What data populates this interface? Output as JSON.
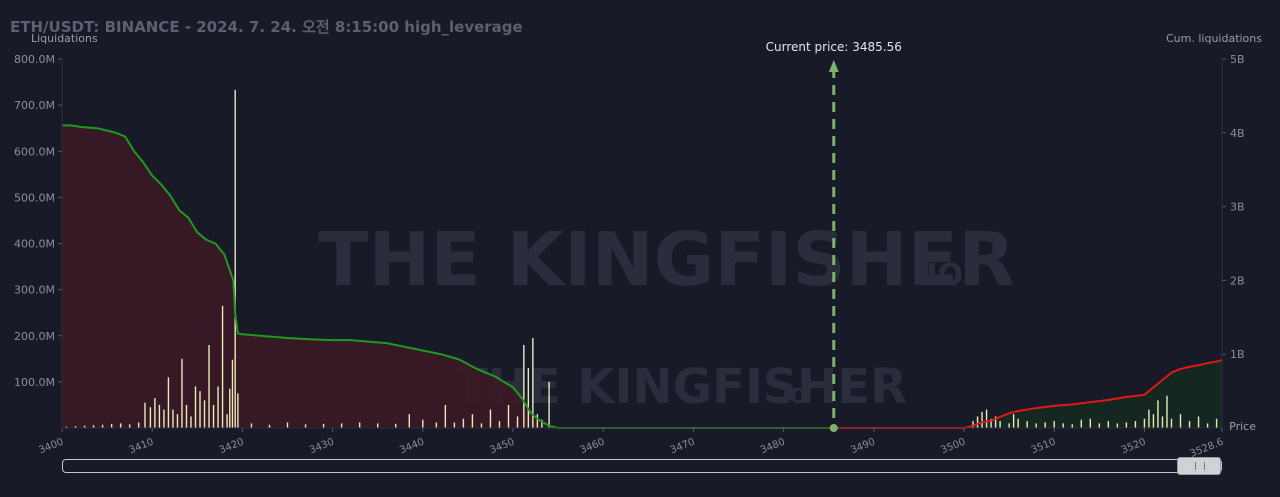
{
  "title": "ETH/USDT: BINANCE - 2024. 7. 24. 오전 8:15:00 high_leverage",
  "watermark": {
    "text": "THE KINGFISHER",
    "suffix": ".IO"
  },
  "current_price_label": "Current price: 3485.56",
  "scrollbar": {
    "position": "end"
  },
  "chart_data": {
    "type": "bar",
    "title": "ETH/USDT: BINANCE - 2024. 7. 24. 오전 8:15:00 high_leverage",
    "xlabel": "Price",
    "ylabel": "Liquidations",
    "y2label": "Cum. liquidations",
    "xlim": [
      3400,
      3528.6
    ],
    "ylim": [
      0,
      800000000
    ],
    "y2lim": [
      0,
      5000000000
    ],
    "x_ticks": [
      "3400",
      "3410",
      "3420",
      "3430",
      "3440",
      "3450",
      "3460",
      "3470",
      "3480",
      "3490",
      "3500",
      "3510",
      "3520",
      "3528.6"
    ],
    "y_ticks": [
      "800.0M",
      "700.0M",
      "600.0M",
      "500.0M",
      "400.0M",
      "300.0M",
      "200.0M",
      "100.0M"
    ],
    "y2_ticks": [
      "5B",
      "4B",
      "3B",
      "2B",
      "1B"
    ],
    "current_price": 3485.56,
    "colors": {
      "bars": "#e9eab9",
      "short_cum": "#1f9a1f",
      "long_cum": "#e01818",
      "short_fill": "#3a1a24",
      "long_fill": "#15291f",
      "price_line": "#7fb26a"
    },
    "bars": [
      [
        3400.5,
        3
      ],
      [
        3401.5,
        4
      ],
      [
        3402.5,
        5
      ],
      [
        3403.5,
        6
      ],
      [
        3404.5,
        7
      ],
      [
        3405.5,
        9
      ],
      [
        3406.5,
        10
      ],
      [
        3407.5,
        8
      ],
      [
        3408.5,
        12
      ],
      [
        3409.2,
        55
      ],
      [
        3409.8,
        45
      ],
      [
        3410.3,
        65
      ],
      [
        3410.8,
        50
      ],
      [
        3411.3,
        40
      ],
      [
        3411.8,
        110
      ],
      [
        3412.3,
        40
      ],
      [
        3412.8,
        30
      ],
      [
        3413.3,
        150
      ],
      [
        3413.8,
        50
      ],
      [
        3414.3,
        25
      ],
      [
        3414.8,
        90
      ],
      [
        3415.3,
        80
      ],
      [
        3415.8,
        60
      ],
      [
        3416.3,
        180
      ],
      [
        3416.8,
        50
      ],
      [
        3417.3,
        90
      ],
      [
        3417.8,
        265
      ],
      [
        3418.3,
        30
      ],
      [
        3418.6,
        85
      ],
      [
        3418.9,
        148
      ],
      [
        3419.2,
        733
      ],
      [
        3419.5,
        75
      ],
      [
        3421,
        10
      ],
      [
        3423,
        7
      ],
      [
        3425,
        12
      ],
      [
        3427,
        8
      ],
      [
        3429,
        9
      ],
      [
        3431,
        10
      ],
      [
        3433,
        12
      ],
      [
        3435,
        10
      ],
      [
        3437,
        9
      ],
      [
        3438.5,
        30
      ],
      [
        3440,
        18
      ],
      [
        3441.5,
        12
      ],
      [
        3442.5,
        50
      ],
      [
        3443.5,
        12
      ],
      [
        3444.5,
        20
      ],
      [
        3445.5,
        30
      ],
      [
        3446.5,
        10
      ],
      [
        3447.5,
        40
      ],
      [
        3448.5,
        15
      ],
      [
        3449.5,
        50
      ],
      [
        3450.5,
        25
      ],
      [
        3451.2,
        180
      ],
      [
        3451.7,
        130
      ],
      [
        3452.2,
        195
      ],
      [
        3452.7,
        30
      ],
      [
        3453.2,
        18
      ],
      [
        3454,
        100
      ],
      [
        3501,
        15
      ],
      [
        3501.5,
        25
      ],
      [
        3502,
        35
      ],
      [
        3502.5,
        40
      ],
      [
        3503,
        20
      ],
      [
        3503.5,
        25
      ],
      [
        3504,
        15
      ],
      [
        3505,
        10
      ],
      [
        3505.5,
        30
      ],
      [
        3506,
        20
      ],
      [
        3507,
        15
      ],
      [
        3508,
        10
      ],
      [
        3509,
        12
      ],
      [
        3510,
        15
      ],
      [
        3511,
        10
      ],
      [
        3512,
        8
      ],
      [
        3513,
        18
      ],
      [
        3514,
        20
      ],
      [
        3515,
        10
      ],
      [
        3516,
        15
      ],
      [
        3517,
        10
      ],
      [
        3518,
        12
      ],
      [
        3519,
        15
      ],
      [
        3520,
        20
      ],
      [
        3520.5,
        40
      ],
      [
        3521,
        30
      ],
      [
        3521.5,
        60
      ],
      [
        3522,
        25
      ],
      [
        3522.5,
        70
      ],
      [
        3523,
        20
      ],
      [
        3524,
        30
      ],
      [
        3525,
        15
      ],
      [
        3526,
        25
      ],
      [
        3527,
        10
      ],
      [
        3528,
        20
      ]
    ],
    "short_cum": [
      [
        3400,
        4100000000.0
      ],
      [
        3401,
        4100000000.0
      ],
      [
        3402,
        4080000000.0
      ],
      [
        3404,
        4060000000.0
      ],
      [
        3406,
        4000000000.0
      ],
      [
        3407,
        3950000000.0
      ],
      [
        3408,
        3750000000.0
      ],
      [
        3409,
        3600000000.0
      ],
      [
        3410,
        3420000000.0
      ],
      [
        3411,
        3300000000.0
      ],
      [
        3412,
        3150000000.0
      ],
      [
        3413,
        2950000000.0
      ],
      [
        3414,
        2850000000.0
      ],
      [
        3415,
        2650000000.0
      ],
      [
        3416,
        2550000000.0
      ],
      [
        3417,
        2500000000.0
      ],
      [
        3418,
        2350000000.0
      ],
      [
        3419,
        2000000000.0
      ],
      [
        3419.2,
        1550000000.0
      ],
      [
        3419.5,
        1280000000.0
      ],
      [
        3420,
        1270000000.0
      ],
      [
        3422,
        1250000000.0
      ],
      [
        3425,
        1220000000.0
      ],
      [
        3428,
        1200000000.0
      ],
      [
        3430,
        1190000000.0
      ],
      [
        3432,
        1190000000.0
      ],
      [
        3434,
        1170000000.0
      ],
      [
        3436,
        1150000000.0
      ],
      [
        3438,
        1100000000.0
      ],
      [
        3440,
        1050000000.0
      ],
      [
        3442,
        1000000000.0
      ],
      [
        3444,
        930000000.0
      ],
      [
        3446,
        800000000.0
      ],
      [
        3448,
        700000000.0
      ],
      [
        3450,
        550000000.0
      ],
      [
        3451,
        400000000.0
      ],
      [
        3452,
        200000000.0
      ],
      [
        3453,
        100000000.0
      ],
      [
        3454,
        30000000.0
      ],
      [
        3455,
        0
      ],
      [
        3485.56,
        0
      ]
    ],
    "long_cum": [
      [
        3485.56,
        0
      ],
      [
        3500,
        0
      ],
      [
        3501,
        30000000.0
      ],
      [
        3502,
        80000000.0
      ],
      [
        3503,
        100000000.0
      ],
      [
        3504,
        150000000.0
      ],
      [
        3505,
        200000000.0
      ],
      [
        3506,
        230000000.0
      ],
      [
        3508,
        270000000.0
      ],
      [
        3510,
        300000000.0
      ],
      [
        3512,
        320000000.0
      ],
      [
        3514,
        350000000.0
      ],
      [
        3516,
        380000000.0
      ],
      [
        3518,
        420000000.0
      ],
      [
        3520,
        450000000.0
      ],
      [
        3521,
        550000000.0
      ],
      [
        3522,
        650000000.0
      ],
      [
        3523,
        750000000.0
      ],
      [
        3524,
        800000000.0
      ],
      [
        3525,
        830000000.0
      ],
      [
        3526,
        850000000.0
      ],
      [
        3527,
        880000000.0
      ],
      [
        3528,
        900000000.0
      ],
      [
        3528.6,
        920000000.0
      ]
    ]
  }
}
